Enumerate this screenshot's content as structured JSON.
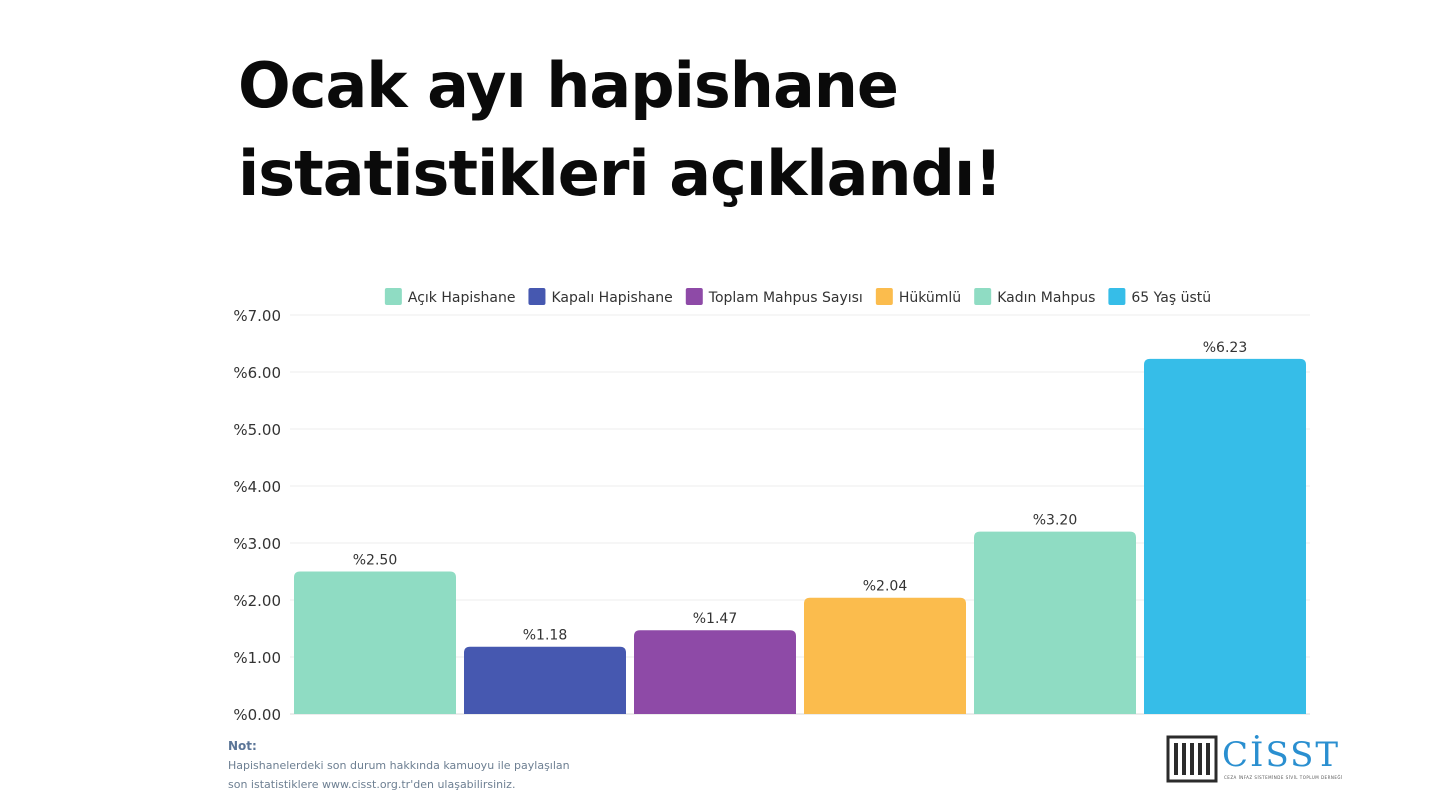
{
  "headline": {
    "line1": "Ocak ayı hapishane",
    "line2": "istatistikleri açıklandı!"
  },
  "chart_data": {
    "type": "bar",
    "categories": [
      "Açık Hapishane",
      "Kapalı Hapishane",
      "Toplam Mahpus Sayısı",
      "Hükümlü",
      "Kadın Mahpus",
      "65 Yaş üstü"
    ],
    "values": [
      2.5,
      1.18,
      1.47,
      2.04,
      3.2,
      6.23
    ],
    "data_labels": [
      "%2.50",
      "%1.18",
      "%1.47",
      "%2.04",
      "%3.20",
      "%6.23"
    ],
    "colors": [
      "#8fdcc3",
      "#4658b0",
      "#8e4aa7",
      "#fbbc4d",
      "#8fdcc3",
      "#36bde8"
    ],
    "ylim": [
      0,
      7
    ],
    "yticks": [
      0,
      1,
      2,
      3,
      4,
      5,
      6,
      7
    ],
    "ytick_labels": [
      "%0.00",
      "%1.00",
      "%2.00",
      "%3.00",
      "%4.00",
      "%5.00",
      "%6.00",
      "%7.00"
    ],
    "legend": {
      "position": "top",
      "entries": [
        "Açık Hapishane",
        "Kapalı Hapishane",
        "Toplam Mahpus Sayısı",
        "Hükümlü",
        "Kadın Mahpus",
        "65 Yaş üstü"
      ]
    },
    "grid": true
  },
  "note": {
    "title": "Not:",
    "line1": "Hapishanelerdeki son durum hakkında kamuoyu ile paylaşılan",
    "line2": "son istatistiklere www.cisst.org.tr'den ulaşabilirsiniz."
  },
  "logo": {
    "text": "CİSST",
    "subtitle": "CEZA İNFAZ SİSTEMİNDE SİVİL TOPLUM DERNEĞİ",
    "text_color": "#2a8fd0",
    "mark_color": "#2b2b2b"
  }
}
